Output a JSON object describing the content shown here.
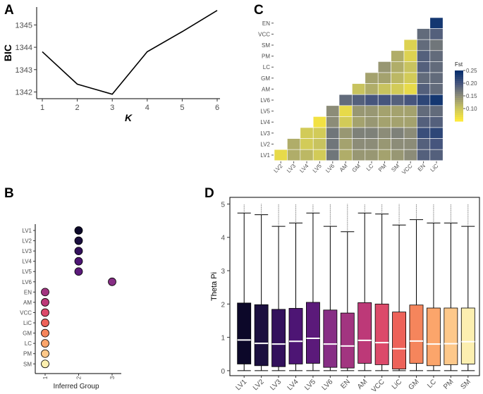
{
  "chart_data": [
    {
      "panel": "A",
      "type": "line",
      "x": [
        1,
        2,
        3,
        4,
        5,
        6
      ],
      "values": [
        1343.8,
        1342.35,
        1341.9,
        1343.8,
        1344.7,
        1345.65
      ],
      "xlabel": "K",
      "ylabel": "BIC",
      "xlim": [
        1,
        6
      ],
      "ylim": [
        1341.7,
        1345.8
      ],
      "xticks": [
        "1",
        "2",
        "3",
        "4",
        "5",
        "6"
      ],
      "yticks": [
        "1342",
        "1343",
        "1344",
        "1345"
      ]
    },
    {
      "panel": "B",
      "type": "scatter",
      "title": "",
      "xlabel": "Inferred Group",
      "ylabel": "",
      "xticks": [
        "1",
        "2",
        "3"
      ],
      "categories": [
        "LV1",
        "LV2",
        "LV3",
        "LV4",
        "LV5",
        "LV6",
        "EN",
        "AM",
        "VCC",
        "LiC",
        "GM",
        "LC",
        "PM",
        "SM"
      ],
      "groups": [
        2,
        2,
        2,
        2,
        2,
        3,
        1,
        1,
        1,
        1,
        1,
        1,
        1,
        1
      ],
      "colors": [
        "#0c0829",
        "#1b0f3f",
        "#33115c",
        "#4d1574",
        "#5b1a7a",
        "#872e85",
        "#a23580",
        "#bd3978",
        "#dc4a6a",
        "#ed6259",
        "#f5855c",
        "#fba56b",
        "#fdc88a",
        "#fcefb0"
      ]
    },
    {
      "panel": "C",
      "type": "heatmap",
      "title": "",
      "legend_title": "Fst",
      "legend_ticks": [
        "0.10",
        "0.15",
        "0.20",
        "0.25"
      ],
      "legend_range": [
        0.05,
        0.25
      ],
      "row_labels": [
        "EN",
        "VCC",
        "SM",
        "PM",
        "LC",
        "GM",
        "AM",
        "LV6",
        "LV5",
        "LV4",
        "LV3",
        "LV2",
        "LV1"
      ],
      "col_labels": [
        "LV2",
        "LV3",
        "LV4",
        "LV5",
        "LV6",
        "AM",
        "GM",
        "LC",
        "PM",
        "SM",
        "VCC",
        "EN",
        "LiC"
      ],
      "row_start": [
        12,
        11,
        10,
        9,
        8,
        7,
        6,
        5,
        4,
        3,
        2,
        1,
        0
      ],
      "values": [
        [
          0.24
        ],
        [
          0.18,
          0.19
        ],
        [
          0.08,
          0.18,
          0.17
        ],
        [
          0.12,
          0.08,
          0.19,
          0.18
        ],
        [
          0.14,
          0.12,
          0.1,
          0.19,
          0.18
        ],
        [
          0.13,
          0.13,
          0.11,
          0.09,
          0.18,
          0.18
        ],
        [
          0.1,
          0.12,
          0.1,
          0.09,
          0.07,
          0.19,
          0.18
        ],
        [
          0.18,
          0.19,
          0.2,
          0.2,
          0.19,
          0.2,
          0.22,
          0.24
        ],
        [
          0.15,
          0.07,
          0.14,
          0.14,
          0.13,
          0.13,
          0.13,
          0.18,
          0.18
        ],
        [
          0.06,
          0.15,
          0.09,
          0.13,
          0.14,
          0.13,
          0.13,
          0.13,
          0.19,
          0.19
        ],
        [
          0.09,
          0.09,
          0.17,
          0.14,
          0.16,
          0.16,
          0.15,
          0.16,
          0.15,
          0.21,
          0.22
        ],
        [
          0.12,
          0.09,
          0.1,
          0.17,
          0.13,
          0.15,
          0.15,
          0.14,
          0.15,
          0.15,
          0.19,
          0.2
        ],
        [
          0.07,
          0.12,
          0.11,
          0.09,
          0.17,
          0.12,
          0.14,
          0.14,
          0.13,
          0.14,
          0.15,
          0.19,
          0.19
        ]
      ]
    },
    {
      "panel": "D",
      "type": "box",
      "title": "",
      "xlabel": "",
      "ylabel": "Theta Pi",
      "ylim": [
        -0.15,
        5.2
      ],
      "yticks": [
        "0",
        "1",
        "2",
        "3",
        "4",
        "5"
      ],
      "categories": [
        "LV1",
        "LV2",
        "LV3",
        "LV4",
        "LV5",
        "LV6",
        "EN",
        "AM",
        "VCC",
        "LiC",
        "GM",
        "LC",
        "PM",
        "SM"
      ],
      "colors": [
        "#0c0829",
        "#1b0f3f",
        "#33115c",
        "#4d1574",
        "#5b1a7a",
        "#872e85",
        "#a23580",
        "#bd3978",
        "#dc4a6a",
        "#ed6259",
        "#f5855c",
        "#fba56b",
        "#fdc88a",
        "#fcefb0"
      ],
      "medians": [
        0.92,
        0.82,
        0.8,
        0.88,
        0.97,
        0.8,
        0.74,
        0.91,
        0.84,
        0.66,
        0.89,
        0.8,
        0.81,
        0.87
      ],
      "q1": [
        0.2,
        0.15,
        0.12,
        0.2,
        0.22,
        0.1,
        0.08,
        0.22,
        0.18,
        0.05,
        0.22,
        0.15,
        0.18,
        0.2
      ],
      "q3": [
        2.03,
        1.98,
        1.84,
        1.87,
        2.05,
        1.82,
        1.73,
        2.04,
        2.0,
        1.76,
        1.97,
        1.88,
        1.88,
        1.88
      ],
      "whisker_low": [
        0,
        0,
        0,
        0,
        0,
        0,
        0,
        0,
        0,
        0,
        0,
        0,
        0,
        0
      ],
      "whisker_high": [
        4.73,
        4.68,
        4.33,
        4.43,
        4.73,
        4.33,
        4.17,
        4.73,
        4.7,
        4.37,
        4.53,
        4.43,
        4.43,
        4.33
      ],
      "outlier_max": [
        5.0,
        5.0,
        5.0,
        5.0,
        5.0,
        5.0,
        5.0,
        5.0,
        5.0,
        5.0,
        5.0,
        5.0,
        5.0,
        5.0
      ]
    }
  ],
  "panels": {
    "A": "A",
    "B": "B",
    "C": "C",
    "D": "D"
  }
}
